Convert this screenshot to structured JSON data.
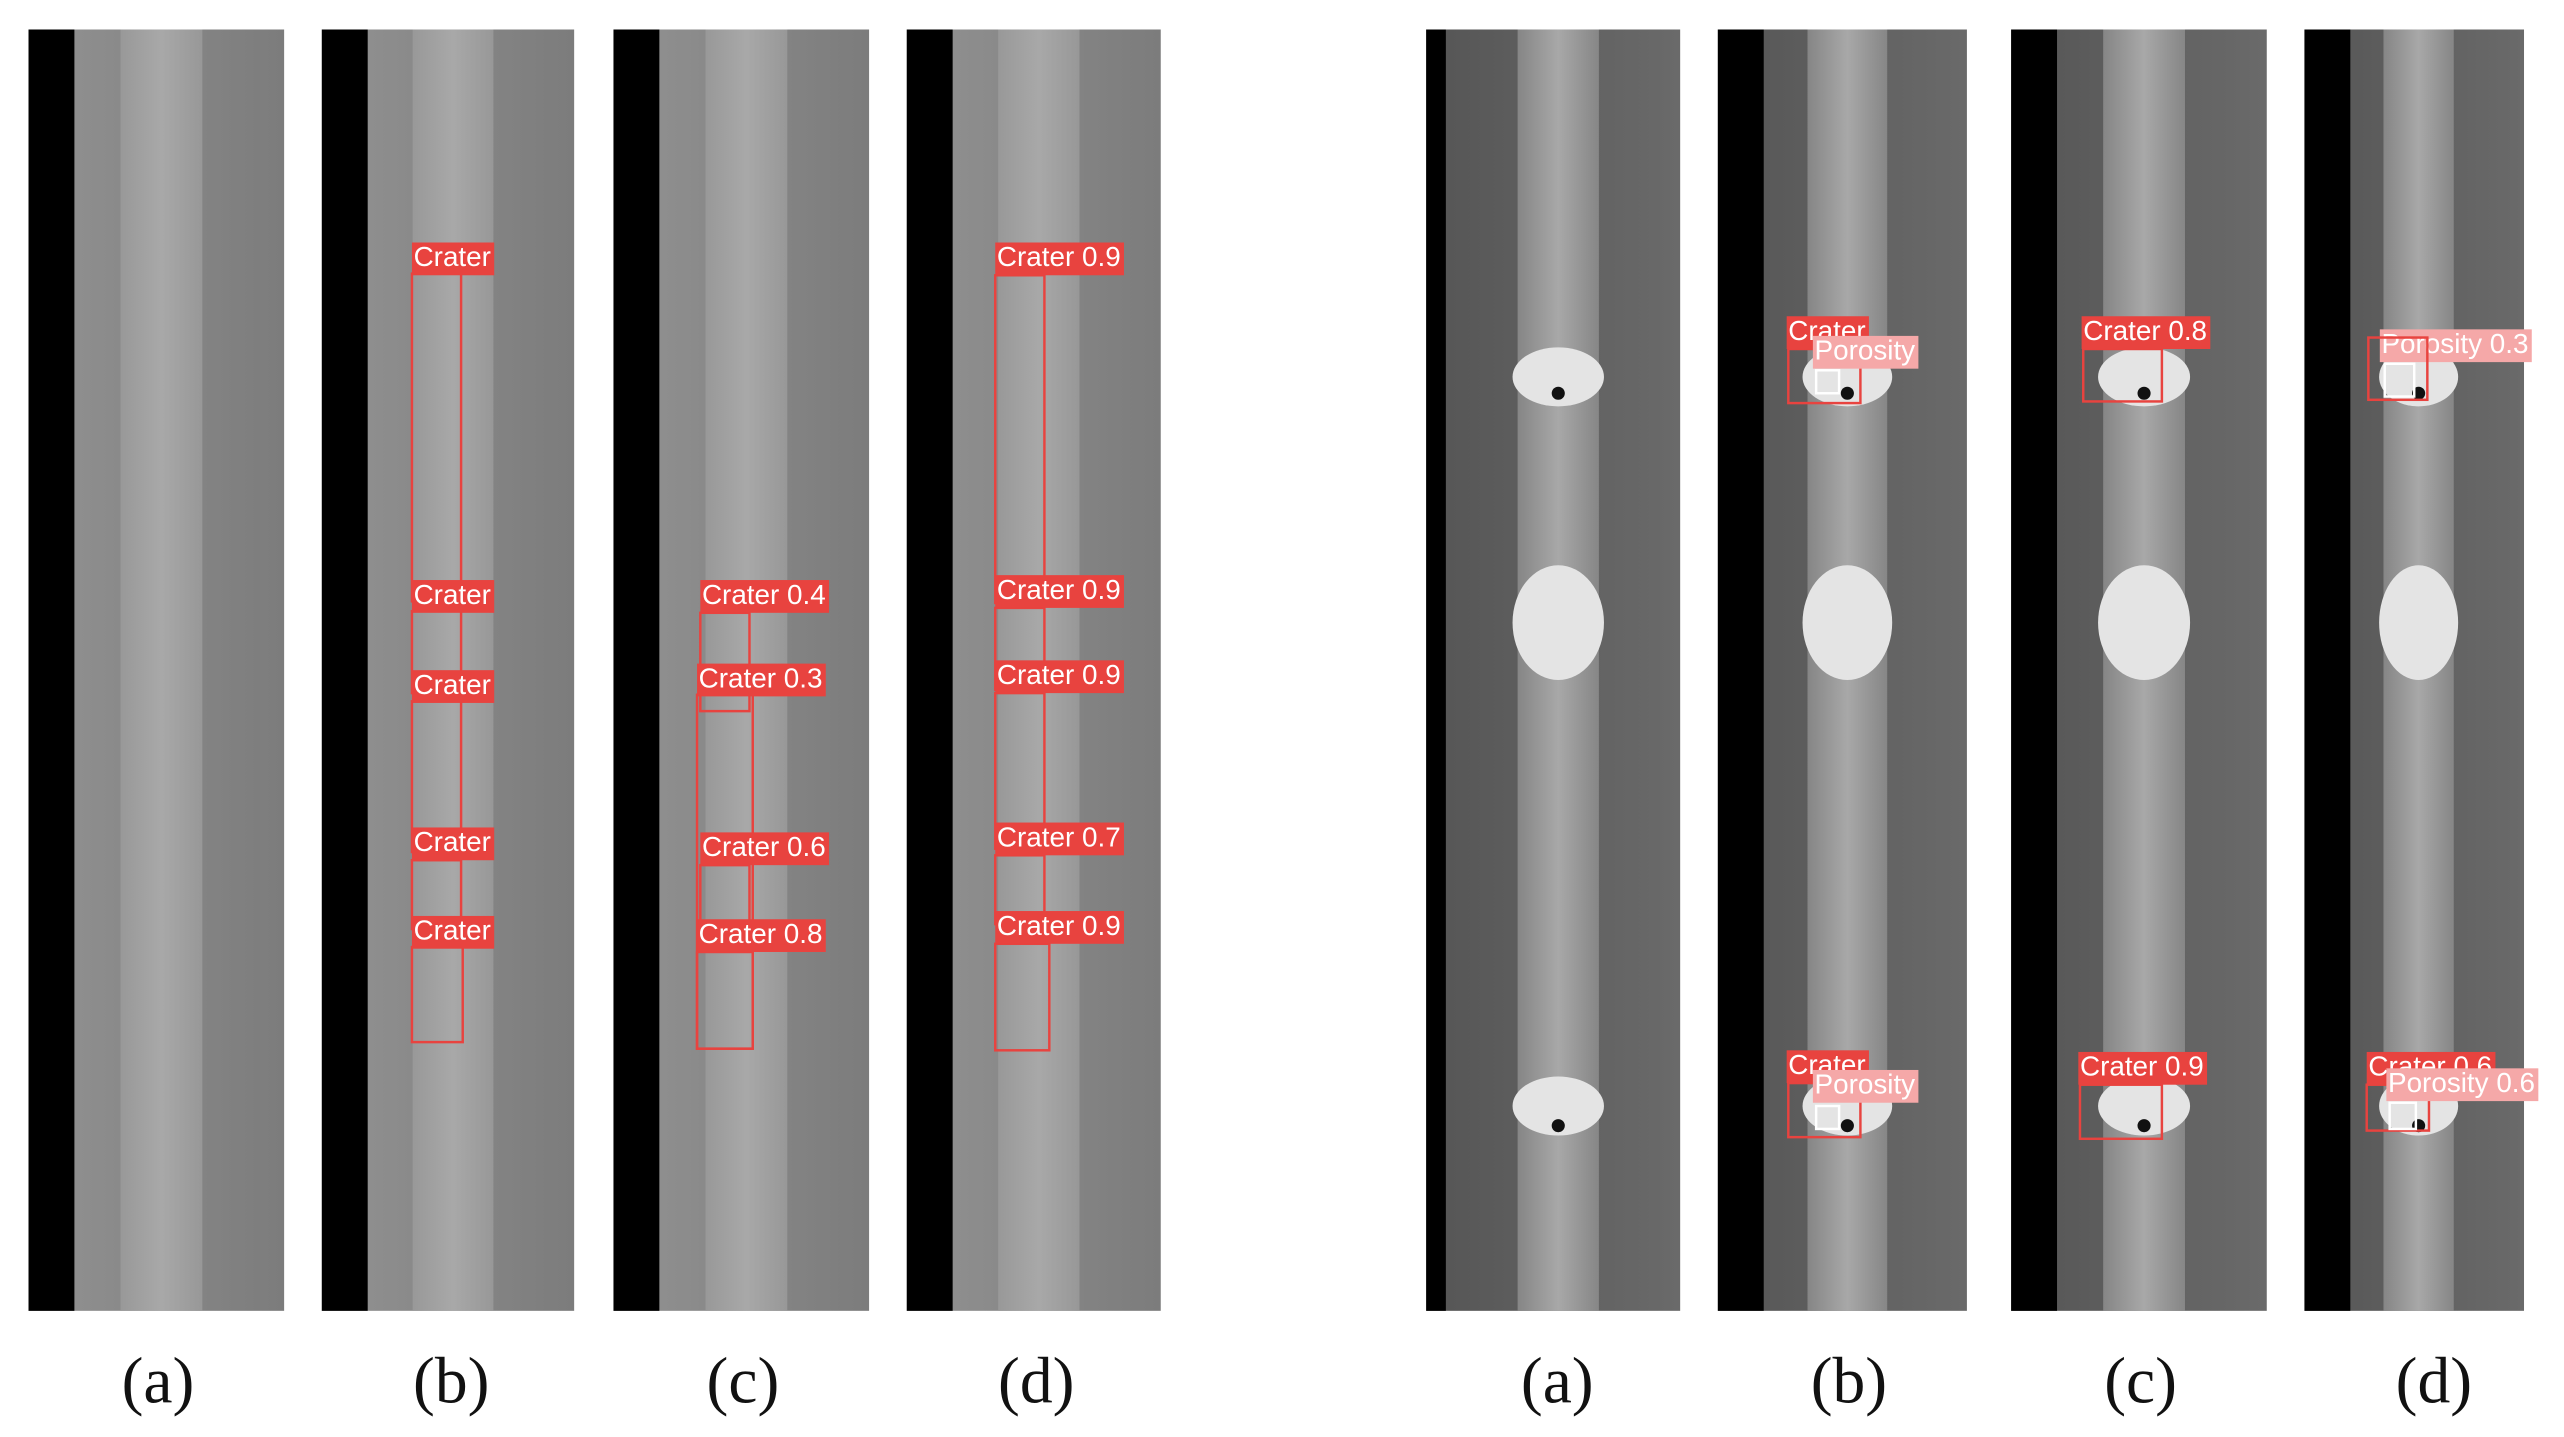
{
  "left": {
    "panels": [
      {
        "caption": "(a)",
        "detections": []
      },
      {
        "caption": "(b)",
        "detections": [
          "Crater",
          "Crater",
          "Crater",
          "Crater",
          "Crater"
        ]
      },
      {
        "caption": "(c)",
        "detections": [
          "Crater 0.4",
          "Crater 0.3",
          "Crater 0.6",
          "Crater 0.8"
        ]
      },
      {
        "caption": "(d)",
        "detections": [
          "Crater 0.9",
          "Crater 0.9",
          "Crater 0.9",
          "Crater 0.7",
          "Crater 0.9"
        ]
      }
    ]
  },
  "right": {
    "panels": [
      {
        "caption": "(a)",
        "detections": []
      },
      {
        "caption": "(b)",
        "detections": [
          "Crater",
          "Porosity",
          "Crater",
          "Porosity"
        ]
      },
      {
        "caption": "(c)",
        "detections": [
          "Crater 0.8",
          "Crater 0.9"
        ]
      },
      {
        "caption": "(d)",
        "detections": [
          "Porosity 0.3",
          "Crater 0.6",
          "Porosity 0.6"
        ]
      }
    ]
  }
}
